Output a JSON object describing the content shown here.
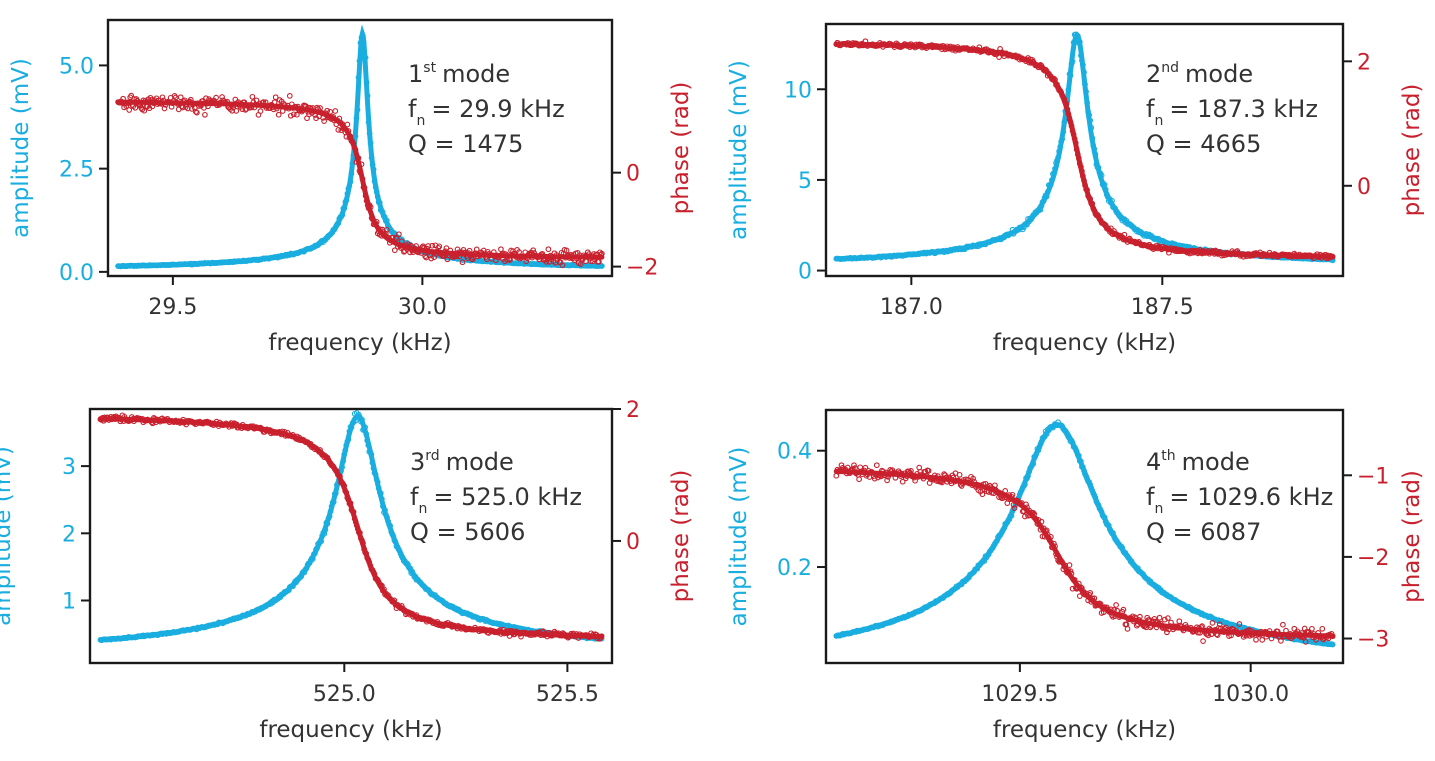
{
  "colors": {
    "amplitude": "#1aaee0",
    "phase": "#c8202c",
    "frame": "#1a1a1a",
    "text": "#333333"
  },
  "chart_data": [
    {
      "type": "scatter",
      "annotation": {
        "mode_num": "1",
        "mode_sup": "st",
        "mode_word": "mode",
        "f_sym": "f",
        "f_sub": "n",
        "f_value": "= 29.9 kHz",
        "q_text": "Q = 1475"
      },
      "xlabel": "frequency (kHz)",
      "ylabel_left": "amplitude (mV)",
      "ylabel_right": "phase (rad)",
      "x_range": [
        29.37,
        30.38
      ],
      "x_ticks": [
        {
          "v": 29.5,
          "label": "29.5"
        },
        {
          "v": 30.0,
          "label": "30.0"
        }
      ],
      "y_left_range": [
        -0.1,
        6.1
      ],
      "y_left_ticks": [
        {
          "v": 0.0,
          "label": "0.0"
        },
        {
          "v": 2.5,
          "label": "2.5"
        },
        {
          "v": 5.0,
          "label": "5.0"
        }
      ],
      "y_right_range": [
        -2.2,
        3.25
      ],
      "y_right_ticks": [
        {
          "v": -2,
          "label": "−2"
        },
        {
          "v": 0,
          "label": "0"
        }
      ],
      "series": [
        {
          "axis": "left",
          "f0": 29.88,
          "Q": 1475,
          "amp": 5.75,
          "offset": 0.02,
          "noise": 0.05
        },
        {
          "axis": "right",
          "f0": 29.88,
          "Q": 1475,
          "high": 1.55,
          "low": -1.85,
          "width": 0.022,
          "noise": 0.14
        }
      ]
    },
    {
      "type": "scatter",
      "annotation": {
        "mode_num": "2",
        "mode_sup": "nd",
        "mode_word": "mode",
        "f_sym": "f",
        "f_sub": "n",
        "f_value": "= 187.3 kHz",
        "q_text": "Q = 4665"
      },
      "xlabel": "frequency (kHz)",
      "ylabel_left": "amplitude (mV)",
      "ylabel_right": "phase (rad)",
      "x_range": [
        186.83,
        187.86
      ],
      "x_ticks": [
        {
          "v": 187.0,
          "label": "187.0"
        },
        {
          "v": 187.5,
          "label": "187.5"
        }
      ],
      "y_left_range": [
        -0.3,
        13.6
      ],
      "y_left_ticks": [
        {
          "v": 0,
          "label": "0"
        },
        {
          "v": 5,
          "label": "5"
        },
        {
          "v": 10,
          "label": "10"
        }
      ],
      "y_right_range": [
        -1.45,
        2.6
      ],
      "y_right_ticks": [
        {
          "v": 0,
          "label": "0"
        },
        {
          "v": 2,
          "label": "2"
        }
      ],
      "series": [
        {
          "axis": "left",
          "f0": 187.33,
          "Q": 4665,
          "amp": 12.9,
          "offset": 0.1,
          "noise": 0.05
        },
        {
          "axis": "right",
          "f0": 187.33,
          "Q": 4665,
          "high": 2.35,
          "low": -1.2,
          "width": 0.03,
          "noise": 0.03
        }
      ]
    },
    {
      "type": "scatter",
      "annotation": {
        "mode_num": "3",
        "mode_sup": "rd",
        "mode_word": "mode",
        "f_sym": "f",
        "f_sub": "n",
        "f_value": "= 525.0 kHz",
        "q_text": "Q = 5606"
      },
      "xlabel": "frequency (kHz)",
      "ylabel_left": "amplitude (mV)",
      "ylabel_right": "phase (rad)",
      "x_range": [
        524.43,
        525.6
      ],
      "x_ticks": [
        {
          "v": 525.0,
          "label": "525.0"
        },
        {
          "v": 525.5,
          "label": "525.5"
        }
      ],
      "y_left_range": [
        0.07,
        3.85
      ],
      "y_left_ticks": [
        {
          "v": 1,
          "label": "1"
        },
        {
          "v": 2,
          "label": "2"
        },
        {
          "v": 3,
          "label": "3"
        }
      ],
      "y_right_range": [
        -1.85,
        2.0
      ],
      "y_right_ticks": [
        {
          "v": 0,
          "label": "0"
        },
        {
          "v": 2,
          "label": "2"
        }
      ],
      "series": [
        {
          "axis": "left",
          "f0": 525.03,
          "Q": 5606,
          "amp": 3.62,
          "offset": 0.12,
          "noise": 0.02
        },
        {
          "axis": "right",
          "f0": 525.03,
          "Q": 5606,
          "high": 1.95,
          "low": -1.55,
          "width": 0.05,
          "noise": 0.03
        }
      ]
    },
    {
      "type": "scatter",
      "annotation": {
        "mode_num": "4",
        "mode_sup": "th",
        "mode_word": "mode",
        "f_sym": "f",
        "f_sub": "n",
        "f_value": "= 1029.6 kHz",
        "q_text": "Q = 6087"
      },
      "xlabel": "frequency (kHz)",
      "ylabel_left": "amplitude (mV)",
      "ylabel_right": "phase (rad)",
      "x_range": [
        1029.08,
        1030.2
      ],
      "x_ticks": [
        {
          "v": 1029.5,
          "label": "1029.5"
        },
        {
          "v": 1030.0,
          "label": "1030.0"
        }
      ],
      "y_left_range": [
        0.035,
        0.47
      ],
      "y_left_ticks": [
        {
          "v": 0.2,
          "label": "0.2"
        },
        {
          "v": 0.4,
          "label": "0.4"
        }
      ],
      "y_right_range": [
        -3.3,
        -0.2
      ],
      "y_right_ticks": [
        {
          "v": -3,
          "label": "−3"
        },
        {
          "v": -2,
          "label": "−2"
        },
        {
          "v": -1,
          "label": "−1"
        }
      ],
      "series": [
        {
          "axis": "left",
          "f0": 1029.58,
          "Q": 6087,
          "amp": 0.44,
          "offset": 0.005,
          "noise": 0.012
        },
        {
          "axis": "right",
          "f0": 1029.58,
          "Q": 6087,
          "high": -0.85,
          "low": -3.05,
          "width": 0.07,
          "noise": 0.07
        }
      ]
    }
  ]
}
